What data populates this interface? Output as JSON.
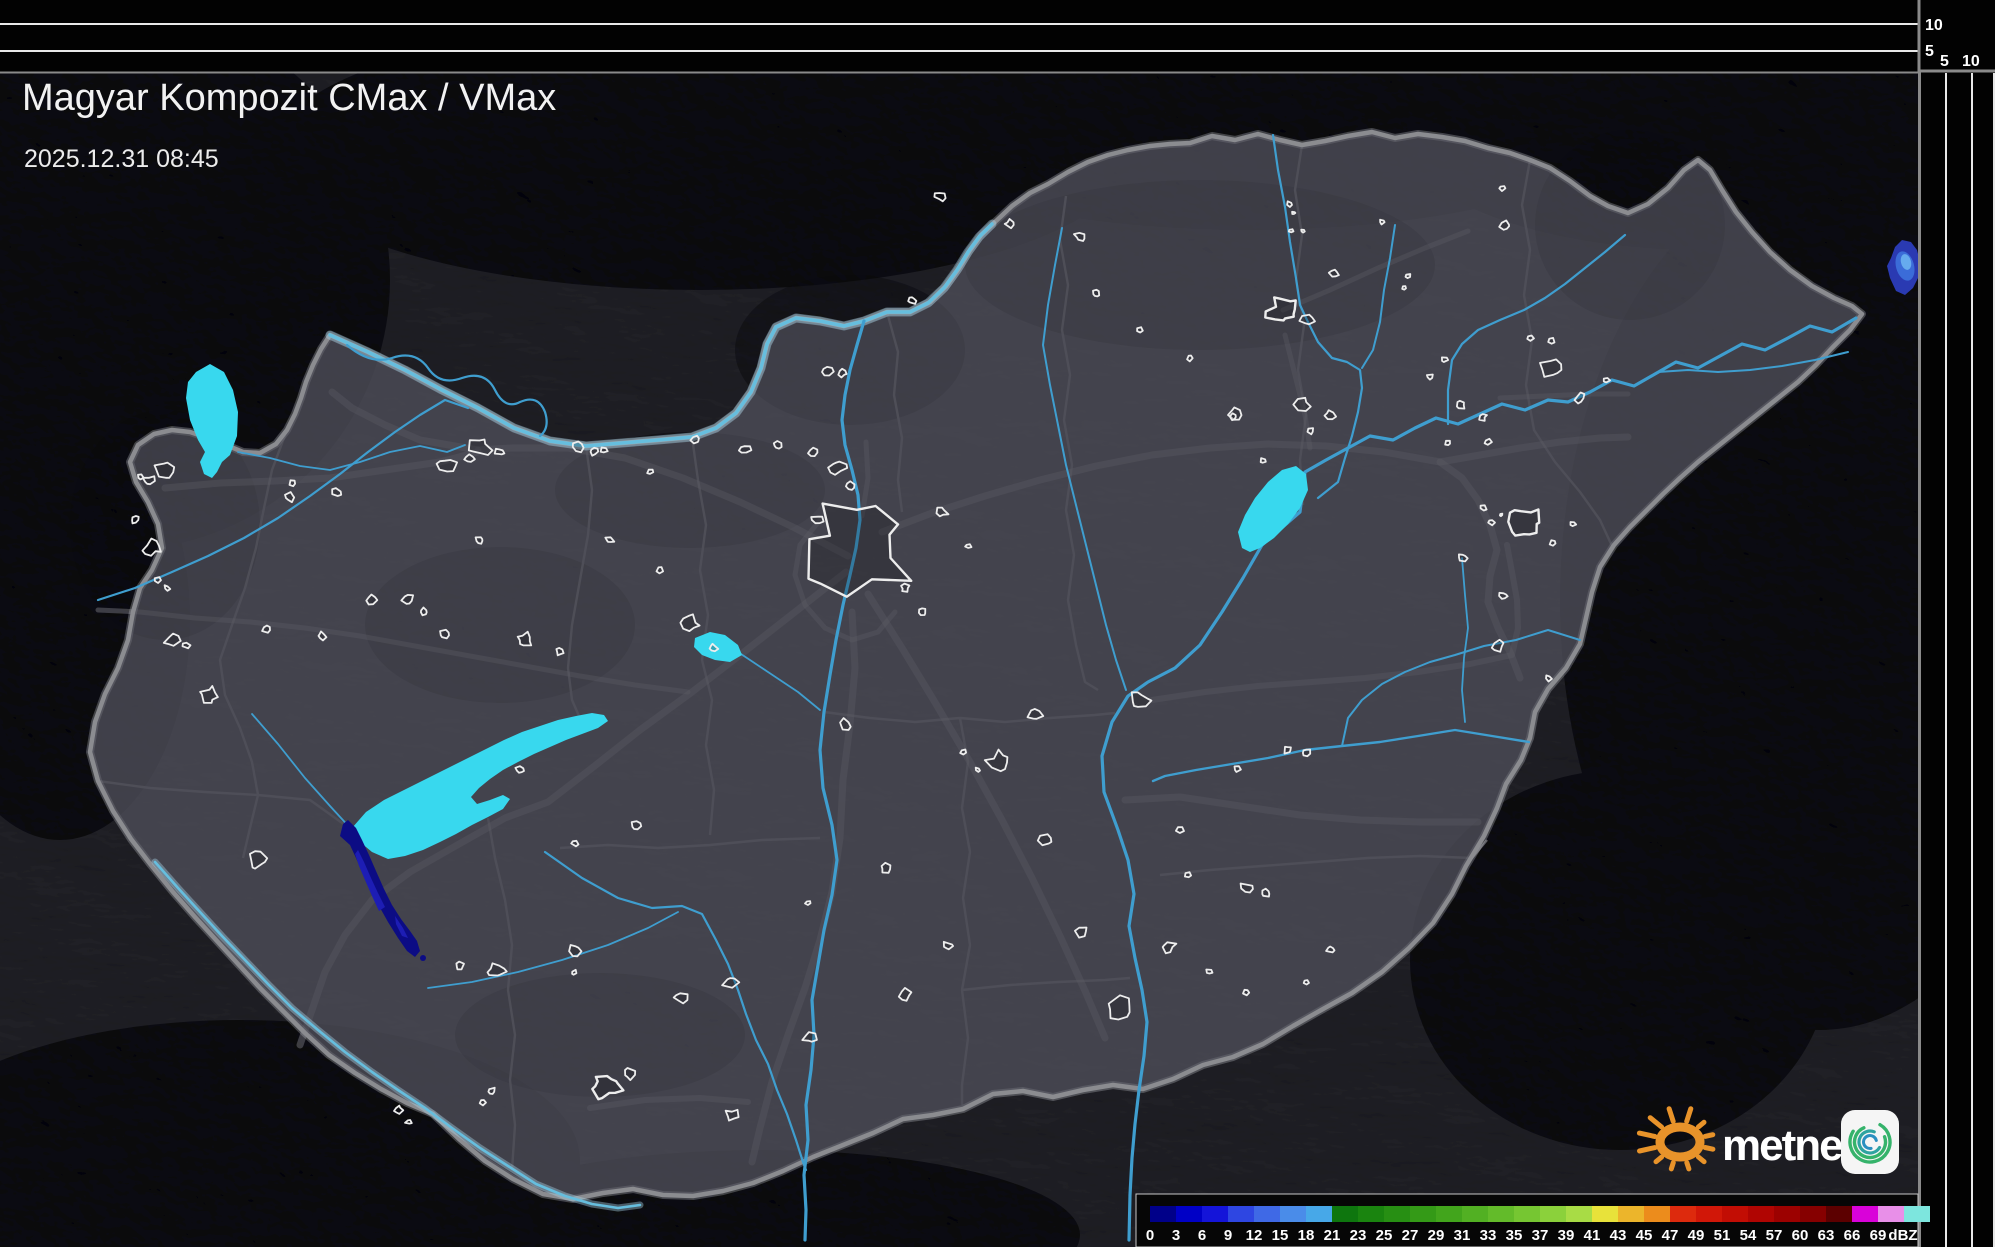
{
  "header": {
    "title": "Magyar Kompozit CMax / VMax",
    "timestamp": "2025.12.31 08:45"
  },
  "projection_panels": {
    "top_axis_labels": [
      "10",
      "5"
    ],
    "side_axis_labels": [
      "5",
      "10"
    ]
  },
  "legend": {
    "unit": "dBZ",
    "boundary_labels": [
      "0",
      "3",
      "6",
      "9",
      "12",
      "15",
      "18",
      "21",
      "23",
      "25",
      "27",
      "29",
      "31",
      "33",
      "35",
      "37",
      "39",
      "41",
      "43",
      "45",
      "47",
      "49",
      "51",
      "54",
      "57",
      "60",
      "63",
      "66",
      "69"
    ],
    "cell_colors": [
      "#000089",
      "#0000c6",
      "#1414d9",
      "#2e46e2",
      "#3f69e6",
      "#4a8ce9",
      "#47a8e8",
      "#0e760e",
      "#1a840f",
      "#278f13",
      "#349a17",
      "#42a51c",
      "#52b023",
      "#63bb2a",
      "#76c632",
      "#8bd13b",
      "#a8dc45",
      "#e8e23a",
      "#ecb52b",
      "#ec8c1c",
      "#dd2a0d",
      "#d11708",
      "#c20d04",
      "#b00502",
      "#9c0100",
      "#860000",
      "#5c0000",
      "#d902d9",
      "#e88fe8"
    ],
    "over_max_color": "#7de6de"
  },
  "logo": {
    "wordmark": "metnet",
    "sun_color": "#e8932a",
    "app_icon_colors": [
      "#35b36b",
      "#2ea3a0",
      "#2a8fc0"
    ]
  },
  "map": {
    "colors": {
      "base": "#47474f",
      "mountain": "#33333b",
      "interior_flat": "rgba(72,72,82,0.50)",
      "outside_shade": "rgba(5,5,10,0.30)",
      "border": "#8b8c90",
      "border_halo": "rgba(195,200,205,0.30)",
      "county": "#68686f",
      "road": "rgba(152,152,160,0.36)",
      "river": "#3f9ecf",
      "danube_glow": "rgba(170,215,235,0.40)",
      "danube_core": "#66bede",
      "lake": "#38d8ee",
      "town": "#ededed",
      "echo_navy": "#0c0c84",
      "echo_navy_inner": "#1d1db4",
      "echo_blue_outer": "#2a3ab2",
      "echo_blue_mid": "#3b6cd8",
      "echo_blue_core": "#66abee",
      "panel_bg": "#020202",
      "panel_line": "#e8e8e8",
      "panel_divider": "#8a8a8a",
      "legend_box_bg": "#060606",
      "legend_box_border": "#c8c8c8"
    },
    "radar_echoes": [
      {
        "name": "echo-southwest-of-balaton",
        "palette_range": "0-6"
      },
      {
        "name": "echo-eastern-edge",
        "palette_range": "3-18"
      }
    ]
  }
}
